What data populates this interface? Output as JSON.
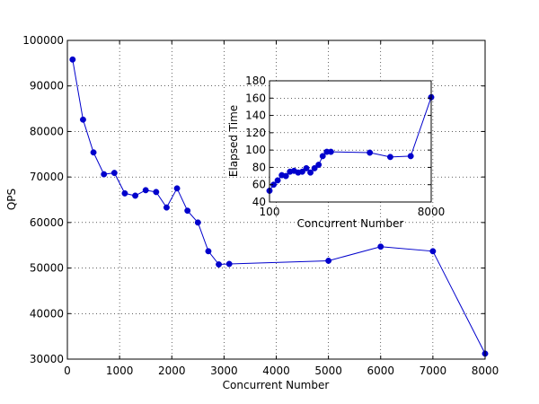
{
  "chart_data": [
    {
      "type": "line",
      "xlabel": "Concurrent Number",
      "ylabel": "QPS",
      "xlim": [
        0,
        8000
      ],
      "ylim": [
        30000,
        100000
      ],
      "xticks": [
        0,
        1000,
        2000,
        3000,
        4000,
        5000,
        6000,
        7000,
        8000
      ],
      "yticks": [
        30000,
        40000,
        50000,
        60000,
        70000,
        80000,
        90000,
        100000
      ],
      "grid": true,
      "series": [
        {
          "color": "#0000cc",
          "marker": "circle",
          "points": [
            {
              "x": 100,
              "y": 95800
            },
            {
              "x": 300,
              "y": 82600
            },
            {
              "x": 500,
              "y": 75400
            },
            {
              "x": 700,
              "y": 70600
            },
            {
              "x": 900,
              "y": 70900
            },
            {
              "x": 1100,
              "y": 66400
            },
            {
              "x": 1300,
              "y": 65900
            },
            {
              "x": 1500,
              "y": 67100
            },
            {
              "x": 1700,
              "y": 66700
            },
            {
              "x": 1900,
              "y": 63300
            },
            {
              "x": 2100,
              "y": 67500
            },
            {
              "x": 2300,
              "y": 62600
            },
            {
              "x": 2500,
              "y": 60000
            },
            {
              "x": 2700,
              "y": 53700
            },
            {
              "x": 2900,
              "y": 50800
            },
            {
              "x": 3100,
              "y": 50900
            },
            {
              "x": 5000,
              "y": 51600
            },
            {
              "x": 6000,
              "y": 54700
            },
            {
              "x": 7000,
              "y": 53700
            },
            {
              "x": 8000,
              "y": 31200
            }
          ]
        }
      ]
    },
    {
      "type": "line",
      "xlabel": "Concurrent Number",
      "ylabel": "Elapsed Time",
      "xlim": [
        100,
        8000
      ],
      "ylim": [
        40,
        180
      ],
      "xticks": [
        100,
        8000
      ],
      "yticks": [
        40,
        60,
        80,
        100,
        120,
        140,
        160,
        180
      ],
      "grid": true,
      "series": [
        {
          "color": "#0000cc",
          "marker": "circle",
          "points": [
            {
              "x": 100,
              "y": 53
            },
            {
              "x": 300,
              "y": 60
            },
            {
              "x": 500,
              "y": 65
            },
            {
              "x": 700,
              "y": 71
            },
            {
              "x": 900,
              "y": 70
            },
            {
              "x": 1100,
              "y": 75
            },
            {
              "x": 1300,
              "y": 76
            },
            {
              "x": 1500,
              "y": 74
            },
            {
              "x": 1700,
              "y": 75
            },
            {
              "x": 1900,
              "y": 79
            },
            {
              "x": 2100,
              "y": 74
            },
            {
              "x": 2300,
              "y": 79
            },
            {
              "x": 2500,
              "y": 83
            },
            {
              "x": 2700,
              "y": 93
            },
            {
              "x": 2900,
              "y": 98
            },
            {
              "x": 3100,
              "y": 98
            },
            {
              "x": 5000,
              "y": 97
            },
            {
              "x": 6000,
              "y": 92
            },
            {
              "x": 7000,
              "y": 93
            },
            {
              "x": 8000,
              "y": 161
            }
          ]
        }
      ]
    }
  ]
}
